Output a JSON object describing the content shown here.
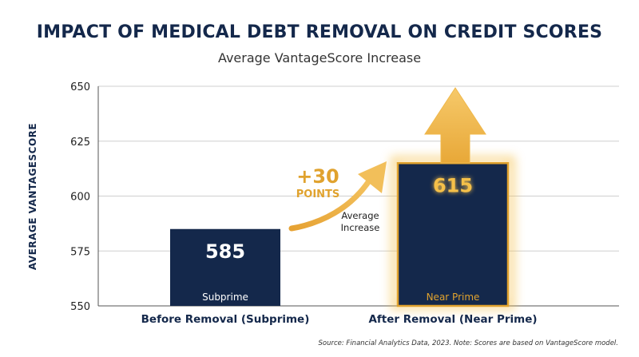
{
  "chart_data": {
    "type": "bar",
    "title": "IMPACT OF MEDICAL DEBT REMOVAL ON CREDIT SCORES",
    "subtitle": "Average VantageScore Increase",
    "xlabel": "",
    "ylabel": "AVERAGE VANTAGESCORE",
    "ylim": [
      550,
      650
    ],
    "yticks": [
      550,
      575,
      600,
      625,
      650
    ],
    "grid": true,
    "categories": [
      "Before Removal (Subprime)",
      "After Removal (Near Prime)"
    ],
    "values": [
      585,
      615
    ],
    "value_labels": [
      "585",
      "615"
    ],
    "tier_labels": [
      "Subprime",
      "Near Prime"
    ],
    "annotation": {
      "headline": "+30",
      "subline": "POINTS",
      "note_lines": [
        "Average",
        "Increase"
      ]
    },
    "source": "Source: Financial Analytics Data, 2023. Note: Scores are based on VantageScore model."
  },
  "colors": {
    "bar": "#14284b",
    "highlight": "#e0a22e",
    "highlight_glow": "#f5c04a",
    "tier_text_before": "#ffffff",
    "tier_text_after": "#e0a22e"
  }
}
